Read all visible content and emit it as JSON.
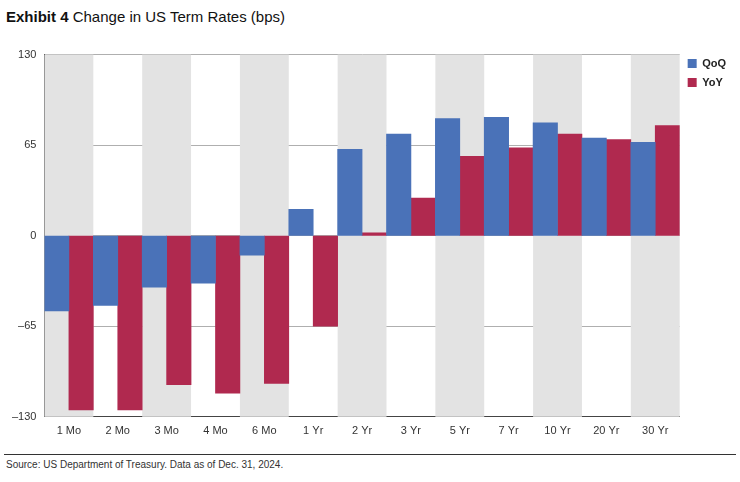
{
  "chart_data": {
    "type": "bar",
    "title": "Exhibit 4 Change in US Term Rates (bps)",
    "note": "Source: US Department of Treasury. Data as of Dec. 31, 2024.",
    "categories": [
      "1 Mo",
      "2 Mo",
      "3 Mo",
      "4 Mo",
      "6 Mo",
      "1 Yr",
      "2 Yr",
      "3 Yr",
      "5 Yr",
      "7 Yr",
      "10 Yr",
      "20 Yr",
      "30 Yr"
    ],
    "series": [
      {
        "name": "QoQ",
        "color": "#4a72b8",
        "values": [
          -54,
          -50,
          -37,
          -34,
          -14,
          19,
          62,
          73,
          84,
          85,
          81,
          70,
          67
        ]
      },
      {
        "name": "YoY",
        "color": "#b0294f",
        "values": [
          -125,
          -125,
          -107,
          -113,
          -106,
          -65,
          2,
          27,
          57,
          63,
          73,
          69,
          79
        ]
      }
    ],
    "ylim": [
      -130,
      130
    ],
    "yticks": [
      {
        "value": -130,
        "label": "–130"
      },
      {
        "value": -65,
        "label": "–65"
      },
      0,
      65,
      130
    ],
    "grid": true,
    "legend": "top right"
  }
}
